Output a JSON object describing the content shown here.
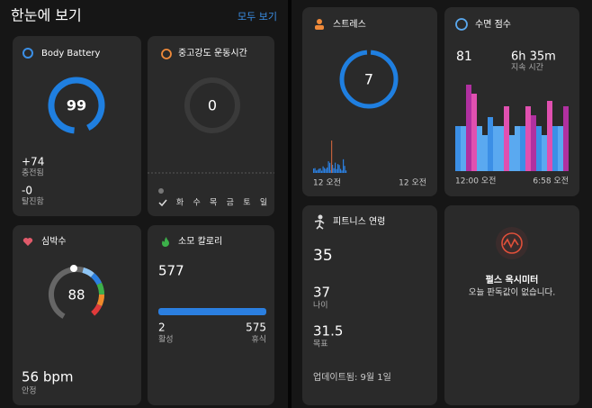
{
  "header": {
    "title": "한눈에 보기",
    "view_all": "모두 보기"
  },
  "body_battery": {
    "title": "Body Battery",
    "value": 99,
    "charged": "+74",
    "charged_label": "충전됨",
    "drained": "-0",
    "drained_label": "탈진함"
  },
  "intensity": {
    "title": "중고강도 운동시간",
    "value": 0,
    "days": [
      "화",
      "수",
      "목",
      "금",
      "토",
      "일"
    ]
  },
  "heart_rate": {
    "title": "심박수",
    "value": 88,
    "resting": "56 bpm",
    "resting_label": "안정"
  },
  "calories": {
    "title": "소모 칼로리",
    "total": 577,
    "active": 2,
    "active_label": "활성",
    "resting": 575,
    "resting_label": "휴식"
  },
  "stress": {
    "title": "스트레스",
    "value": 7,
    "start": "12 오전",
    "end": "12 오전"
  },
  "sleep": {
    "title": "수면 점수",
    "score": 81,
    "duration": "6h 35m",
    "duration_label": "지속 시간",
    "start": "12:00 오전",
    "end": "6:58 오전"
  },
  "fitness_age": {
    "title": "피트니스 연령",
    "value": 35,
    "age": 37,
    "age_label": "나이",
    "target": 31.5,
    "target_label": "목표",
    "updated": "업데이트됨: 9월 1일"
  },
  "pulse_ox": {
    "title": "펄스 옥시미터",
    "message": "오늘 판독값이 없습니다."
  }
}
